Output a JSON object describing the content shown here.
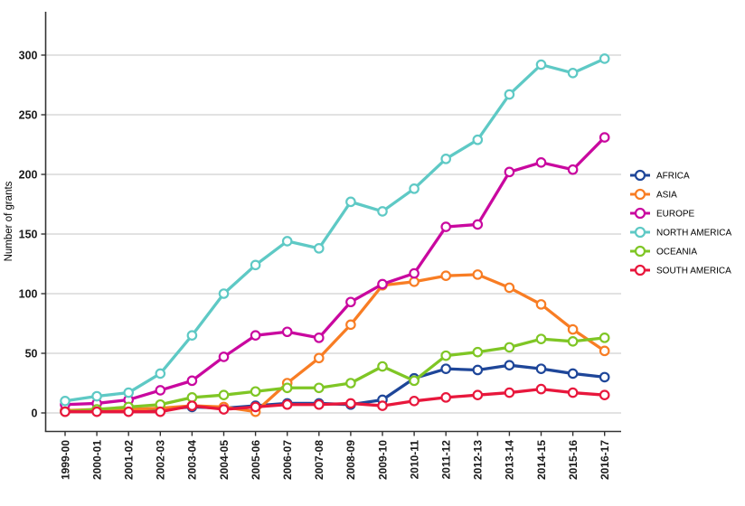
{
  "figure": {
    "background": "#ffffff"
  },
  "chart_data": {
    "type": "line",
    "title": "",
    "xlabel": "",
    "ylabel": "Number of grants",
    "ylim": [
      0,
      300
    ],
    "yticks": [
      0,
      50,
      100,
      150,
      200,
      250,
      300
    ],
    "grid": "horizontal-major-only",
    "gridline_color": "#d9d9d9",
    "axis_line_color": "#333333",
    "marker": "open-circle-white-fill",
    "legend_position": "right",
    "x_tick_label_rotation": 90,
    "categories": [
      "1999-00",
      "2000-01",
      "2001-02",
      "2002-03",
      "2003-04",
      "2004-05",
      "2005-06",
      "2006-07",
      "2007-08",
      "2008-09",
      "2009-10",
      "2010-11",
      "2011-12",
      "2012-13",
      "2013-14",
      "2014-15",
      "2015-16",
      "2016-17"
    ],
    "series": [
      {
        "name": "AFRICA",
        "color": "#1e4699",
        "values": [
          2,
          2,
          2,
          3,
          5,
          4,
          6,
          8,
          8,
          7,
          11,
          29,
          37,
          36,
          40,
          37,
          33,
          30
        ]
      },
      {
        "name": "ASIA",
        "color": "#f87d24",
        "values": [
          2,
          3,
          3,
          4,
          6,
          5,
          1,
          25,
          46,
          74,
          107,
          110,
          115,
          116,
          105,
          91,
          70,
          52
        ]
      },
      {
        "name": "EUROPE",
        "color": "#c9089f",
        "values": [
          7,
          8,
          11,
          19,
          27,
          47,
          65,
          68,
          63,
          93,
          108,
          117,
          156,
          158,
          202,
          210,
          204,
          231
        ]
      },
      {
        "name": "NORTH AMERICA",
        "color": "#5ec9c5",
        "values": [
          10,
          14,
          17,
          33,
          65,
          100,
          124,
          144,
          138,
          177,
          169,
          188,
          213,
          229,
          267,
          292,
          285,
          297
        ]
      },
      {
        "name": "OCEANIA",
        "color": "#7fc625",
        "values": [
          1,
          3,
          5,
          7,
          13,
          15,
          18,
          21,
          21,
          25,
          39,
          27,
          48,
          51,
          55,
          62,
          60,
          63
        ]
      },
      {
        "name": "SOUTH AMERICA",
        "color": "#e8173c",
        "values": [
          1,
          1,
          1,
          1,
          6,
          3,
          5,
          7,
          7,
          8,
          6,
          10,
          13,
          15,
          17,
          20,
          17,
          15
        ]
      }
    ]
  }
}
